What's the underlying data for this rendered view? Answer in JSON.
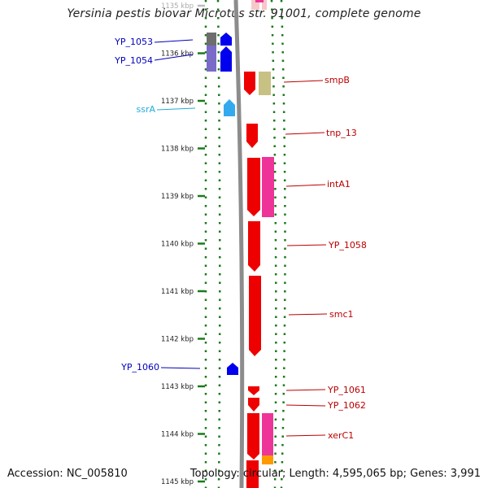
{
  "title": "Yersinia pestis biovar Microtus str. 91001, complete genome",
  "footer": {
    "accession": "Accession: NC_005810",
    "summary": "Topology: circular; Length: 4,595,065 bp; Genes: 3,991"
  },
  "ruler": {
    "unit": "kbp",
    "ticks": [
      {
        "kbp": 1135,
        "label": "1135 kbp"
      },
      {
        "kbp": 1136,
        "label": "1136 kbp"
      },
      {
        "kbp": 1137,
        "label": "1137 kbp"
      },
      {
        "kbp": 1138,
        "label": "1138 kbp"
      },
      {
        "kbp": 1139,
        "label": "1139 kbp"
      },
      {
        "kbp": 1140,
        "label": "1140 kbp"
      },
      {
        "kbp": 1141,
        "label": "1141 kbp"
      },
      {
        "kbp": 1142,
        "label": "1142 kbp"
      },
      {
        "kbp": 1143,
        "label": "1143 kbp"
      },
      {
        "kbp": 1144,
        "label": "1144 kbp"
      },
      {
        "kbp": 1145,
        "label": "1145 kbp"
      }
    ]
  },
  "labels": [
    {
      "text": "YP_1053",
      "side": "left",
      "color": "#0000bb"
    },
    {
      "text": "YP_1054",
      "side": "left",
      "color": "#0000bb"
    },
    {
      "text": "ssrA",
      "side": "left",
      "color": "#22aadd"
    },
    {
      "text": "YP_1060",
      "side": "left",
      "color": "#0000bb"
    },
    {
      "text": "smpB",
      "side": "right",
      "color": "#bb0000"
    },
    {
      "text": "tnp_13",
      "side": "right",
      "color": "#bb0000"
    },
    {
      "text": "intA1",
      "side": "right",
      "color": "#bb0000"
    },
    {
      "text": "YP_1058",
      "side": "right",
      "color": "#bb0000"
    },
    {
      "text": "smc1",
      "side": "right",
      "color": "#bb0000"
    },
    {
      "text": "YP_1061",
      "side": "right",
      "color": "#bb0000"
    },
    {
      "text": "YP_1062",
      "side": "right",
      "color": "#bb0000"
    },
    {
      "text": "xerC1",
      "side": "right",
      "color": "#bb0000"
    }
  ],
  "colors": {
    "backbone": "#8c8c8c",
    "tick": "#1a7a1a",
    "forward_cds": "#0000ee",
    "forward_rna": "#33aaee",
    "reverse_cds": "#ee0000",
    "cog_gray": "#6e6e6e",
    "cog_purple": "#7b6bc9",
    "cog_khaki": "#c8c184",
    "cog_pink": "#ee3399",
    "cog_orange": "#ff9900",
    "faint_pink": "#f6c8c8"
  }
}
